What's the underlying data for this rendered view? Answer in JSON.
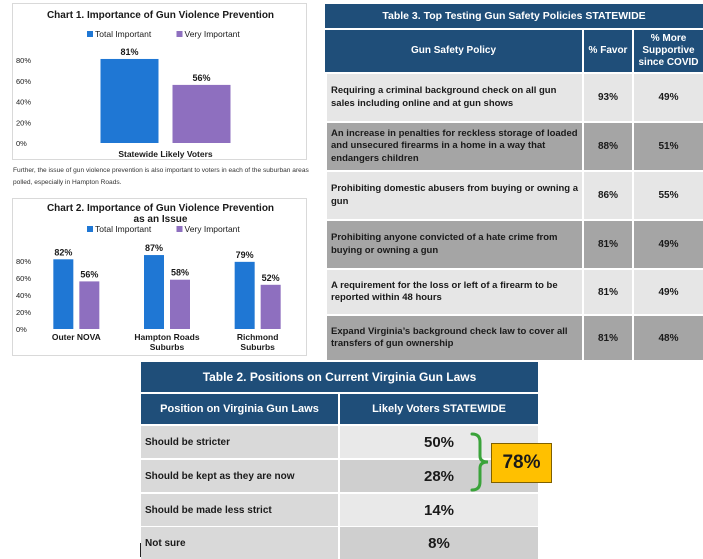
{
  "chart_data": [
    {
      "type": "bar",
      "title": "Chart 1. Importance of Gun Violence Prevention",
      "series": [
        {
          "name": "Total Important",
          "values": [
            81
          ],
          "color": "#1f77d4"
        },
        {
          "name": "Very Important",
          "values": [
            56
          ],
          "color": "#8e6fbf"
        }
      ],
      "categories": [
        "Statewide Likely Voters"
      ],
      "data_labels": [
        [
          "81%"
        ],
        [
          "56%"
        ]
      ],
      "yticks": [
        "80%",
        "60%",
        "40%",
        "20%",
        "0%"
      ],
      "ylim": [
        0,
        80
      ],
      "legend": "top"
    },
    {
      "type": "bar",
      "title_line1": "Chart 2. Importance of Gun Violence Prevention",
      "title_line2": "as an Issue",
      "series": [
        {
          "name": "Total Important",
          "values": [
            82,
            87,
            79
          ],
          "color": "#1f77d4"
        },
        {
          "name": "Very Important",
          "values": [
            56,
            58,
            52
          ],
          "color": "#8e6fbf"
        }
      ],
      "categories": [
        [
          "Outer NOVA"
        ],
        [
          "Hampton Roads",
          "Suburbs"
        ],
        [
          "Richmond",
          "Suburbs"
        ]
      ],
      "data_labels": [
        [
          "82%",
          "87%",
          "79%"
        ],
        [
          "56%",
          "58%",
          "52%"
        ]
      ],
      "yticks": [
        "80%",
        "60%",
        "40%",
        "20%",
        "0%"
      ],
      "ylim": [
        0,
        80
      ],
      "legend": "top"
    }
  ],
  "note": "Further, the issue of gun violence prevention is also important to voters in each of the suburban areas polled, especially in Hampton Roads.",
  "table3": {
    "title": "Table 3. Top Testing Gun Safety Policies STATEWIDE",
    "headers": {
      "policy": "Gun Safety Policy",
      "favor": "% Favor",
      "support_line1": "% More",
      "support_line2": "Supportive",
      "support_line3": "since COVID"
    },
    "rows": [
      {
        "policy": "Requiring a criminal background check on all gun sales including online and at gun shows",
        "favor": "93%",
        "support": "49%"
      },
      {
        "policy": "An increase in penalties for reckless storage of loaded and unsecured firearms in a home in a way that endangers children",
        "favor": "88%",
        "support": "51%"
      },
      {
        "policy": "Prohibiting domestic abusers from buying or owning a gun",
        "favor": "86%",
        "support": "55%"
      },
      {
        "policy": "Prohibiting anyone convicted of a hate crime from buying or owning a gun",
        "favor": "81%",
        "support": "49%"
      },
      {
        "policy": "A requirement for the loss or left of a firearm to be reported within 48 hours",
        "favor": "81%",
        "support": "49%"
      },
      {
        "policy": "Expand Virginia’s background check law to cover all transfers of gun ownership",
        "favor": "81%",
        "support": "48%"
      }
    ]
  },
  "table2": {
    "title": "Table 2. Positions on Current Virginia Gun Laws",
    "headers": {
      "position": "Position on Virginia Gun Laws",
      "voters": "Likely Voters STATEWIDE"
    },
    "rows": [
      {
        "label": "Should be stricter",
        "value": "50%"
      },
      {
        "label": "Should be kept as they are now",
        "value": "28%"
      },
      {
        "label": "Should be made less strict",
        "value": "14%"
      },
      {
        "label": "Not sure",
        "value": "8%"
      }
    ],
    "combined": "78%",
    "bracket_color": "#3aa33a",
    "badge_color": "#ffc000"
  }
}
